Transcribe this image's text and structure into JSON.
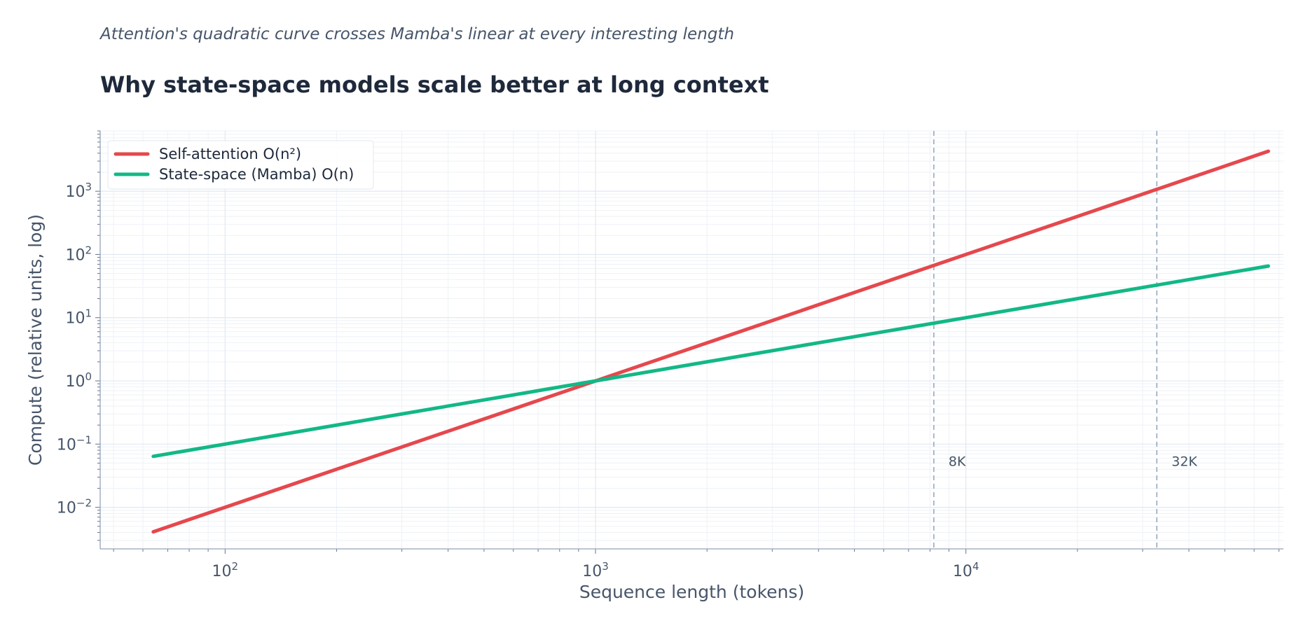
{
  "subtitle": "Attention's quadratic curve crosses Mamba's linear at every interesting length",
  "title": "Why state-space models scale better at long context",
  "chart_data": {
    "type": "line",
    "xscale": "log",
    "yscale": "log",
    "xlabel": "Sequence length (tokens)",
    "ylabel": "Compute (relative units, log)",
    "xlim": [
      46,
      72000
    ],
    "ylim": [
      0.0022,
      9000
    ],
    "xticks": [
      {
        "value": 100,
        "base": "10",
        "exp": "2"
      },
      {
        "value": 1000,
        "base": "10",
        "exp": "3"
      },
      {
        "value": 10000,
        "base": "10",
        "exp": "4"
      }
    ],
    "yticks": [
      {
        "value": 0.01,
        "base": "10",
        "exp": "−2"
      },
      {
        "value": 0.1,
        "base": "10",
        "exp": "−1"
      },
      {
        "value": 1,
        "base": "10",
        "exp": "0"
      },
      {
        "value": 10,
        "base": "10",
        "exp": "1"
      },
      {
        "value": 100,
        "base": "10",
        "exp": "2"
      },
      {
        "value": 1000,
        "base": "10",
        "exp": "3"
      }
    ],
    "grid": true,
    "legend_position": "top-left",
    "series": [
      {
        "name": "Self-attention  O(n²)",
        "color": "#e5484d",
        "x": [
          64,
          128,
          256,
          512,
          1024,
          2048,
          4096,
          8192,
          16384,
          32768,
          65536
        ],
        "y": [
          0.0041,
          0.0164,
          0.0655,
          0.262,
          1.049,
          4.19,
          16.8,
          67.1,
          268,
          1074,
          4295
        ]
      },
      {
        "name": "State-space (Mamba) O(n)",
        "color": "#12b886",
        "x": [
          64,
          128,
          256,
          512,
          1024,
          2048,
          4096,
          8192,
          16384,
          32768,
          65536
        ],
        "y": [
          0.064,
          0.128,
          0.256,
          0.512,
          1.024,
          2.048,
          4.096,
          8.192,
          16.38,
          32.77,
          65.54
        ]
      }
    ],
    "reference_lines": [
      {
        "x": 8192,
        "label": "8K"
      },
      {
        "x": 32768,
        "label": "32K"
      }
    ]
  }
}
